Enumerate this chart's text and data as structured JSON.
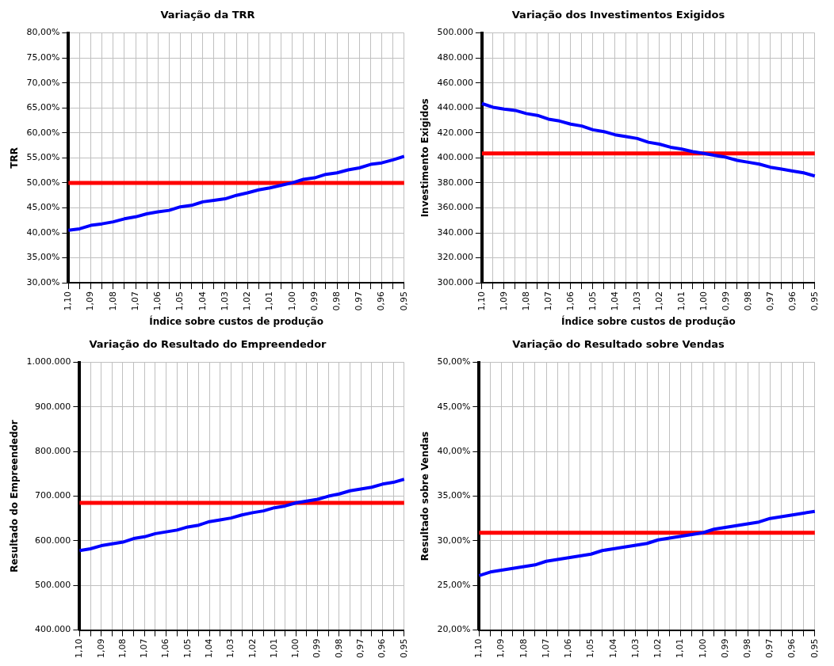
{
  "chart_data": [
    {
      "type": "line",
      "title": "Variação da TRR",
      "xlabel": "Índice sobre custos de produção",
      "ylabel": "TRR",
      "categories": [
        "1,10",
        null,
        "1,09",
        null,
        "1,08",
        null,
        "1,07",
        null,
        "1,06",
        null,
        "1,05",
        null,
        "1,04",
        null,
        "1,03",
        null,
        "1,02",
        null,
        "1,01",
        null,
        "1,00",
        null,
        "0,99",
        null,
        "0,98",
        null,
        "0,97",
        null,
        "0,96",
        null,
        "0,95"
      ],
      "series": [
        {
          "color": "#0000ff",
          "values": [
            40.5,
            40.8,
            41.5,
            41.8,
            42.2,
            42.8,
            43.2,
            43.8,
            44.2,
            44.5,
            45.2,
            45.5,
            46.2,
            46.5,
            46.8,
            47.5,
            48.0,
            48.6,
            49.0,
            49.5,
            50.0,
            50.7,
            51.0,
            51.7,
            52.0,
            52.6,
            53.0,
            53.7,
            54.0,
            54.6,
            55.3
          ]
        }
      ],
      "ylim": [
        30,
        80
      ],
      "yticks": [
        {
          "value": 30,
          "label": "30,00%"
        },
        {
          "value": 35,
          "label": "35,00%"
        },
        {
          "value": 40,
          "label": "40,00%"
        },
        {
          "value": 45,
          "label": "45,00%"
        },
        {
          "value": 50,
          "label": "50,00%"
        },
        {
          "value": 55,
          "label": "55,00%"
        },
        {
          "value": 60,
          "label": "60,00%"
        },
        {
          "value": 65,
          "label": "65,00%"
        },
        {
          "value": 70,
          "label": "70,00%"
        },
        {
          "value": 75,
          "label": "75,00%"
        },
        {
          "value": 80,
          "label": "80,00%"
        }
      ],
      "ref_lines": [
        {
          "axis": "y",
          "value": 50,
          "color": "#ff0000"
        }
      ],
      "grid": true,
      "legend": false,
      "marker": "none",
      "line_style": "solid"
    },
    {
      "type": "line",
      "title": "Variação dos Investimentos Exigidos",
      "xlabel": "Índice sobre custos de produção",
      "ylabel": "Investimento Exigidos",
      "categories": [
        "1,10",
        null,
        "1,09",
        null,
        "1,08",
        null,
        "1,07",
        null,
        "1,06",
        null,
        "1,05",
        null,
        "1,04",
        null,
        "1,03",
        null,
        "1,02",
        null,
        "1,01",
        null,
        "1,00",
        null,
        "0,99",
        null,
        "0,98",
        null,
        "0,97",
        null,
        "0,96",
        null,
        "0,95"
      ],
      "series": [
        {
          "color": "#0000ff",
          "values": [
            443500,
            440500,
            439000,
            438000,
            435500,
            434000,
            431000,
            429500,
            427000,
            425500,
            422500,
            421000,
            418500,
            417000,
            415500,
            412500,
            411000,
            408500,
            407000,
            405000,
            403500,
            402000,
            400500,
            398000,
            396500,
            395000,
            392500,
            391000,
            389500,
            388000,
            385500
          ]
        }
      ],
      "ylim": [
        300000,
        500000
      ],
      "yticks": [
        {
          "value": 300000,
          "label": "300.000"
        },
        {
          "value": 320000,
          "label": "320.000"
        },
        {
          "value": 340000,
          "label": "340.000"
        },
        {
          "value": 360000,
          "label": "360.000"
        },
        {
          "value": 380000,
          "label": "380.000"
        },
        {
          "value": 400000,
          "label": "400.000"
        },
        {
          "value": 420000,
          "label": "420.000"
        },
        {
          "value": 440000,
          "label": "440.000"
        },
        {
          "value": 460000,
          "label": "460.000"
        },
        {
          "value": 480000,
          "label": "480.000"
        },
        {
          "value": 500000,
          "label": "500.000"
        }
      ],
      "ref_lines": [
        {
          "axis": "y",
          "value": 403500,
          "color": "#ff0000"
        }
      ],
      "grid": true,
      "legend": false,
      "marker": "none",
      "line_style": "solid"
    },
    {
      "type": "line",
      "title": "Variação do Resultado do Empreendedor",
      "ylabel": "Resultado do Empreendedor",
      "categories": [
        "1,10",
        null,
        "1,09",
        null,
        "1,08",
        null,
        "1,07",
        null,
        "1,06",
        null,
        "1,05",
        null,
        "1,04",
        null,
        "1,03",
        null,
        "1,02",
        null,
        "1,01",
        null,
        "1,00",
        null,
        "0,99",
        null,
        "0,98",
        null,
        "0,97",
        null,
        "0,96",
        null,
        "0,95"
      ],
      "series": [
        {
          "color": "#0000ff",
          "values": [
            578000,
            582000,
            589000,
            593000,
            597000,
            605000,
            609000,
            616000,
            620000,
            624000,
            631000,
            635000,
            643000,
            647000,
            651000,
            658000,
            663000,
            667000,
            674000,
            678000,
            685000,
            689000,
            693000,
            700000,
            705000,
            712000,
            716000,
            720000,
            727000,
            731000,
            738000
          ]
        }
      ],
      "ylim": [
        400000,
        1000000
      ],
      "yticks": [
        {
          "value": 400000,
          "label": "400.000"
        },
        {
          "value": 500000,
          "label": "500.000"
        },
        {
          "value": 600000,
          "label": "600.000"
        },
        {
          "value": 700000,
          "label": "700.000"
        },
        {
          "value": 800000,
          "label": "800.000"
        },
        {
          "value": 900000,
          "label": "900.000"
        },
        {
          "value": 1000000,
          "label": "1.000.000"
        }
      ],
      "ref_lines": [
        {
          "axis": "y",
          "value": 685000,
          "color": "#ff0000"
        }
      ],
      "grid": true,
      "legend": false,
      "marker": "none",
      "line_style": "solid"
    },
    {
      "type": "line",
      "title": "Variação do Resultado sobre Vendas",
      "ylabel": "Resultado sobre Vendas",
      "categories": [
        "1,10",
        null,
        "1,09",
        null,
        "1,08",
        null,
        "1,07",
        null,
        "1,06",
        null,
        "1,05",
        null,
        "1,04",
        null,
        "1,03",
        null,
        "1,02",
        null,
        "1,01",
        null,
        "1,00",
        null,
        "0,99",
        null,
        "0,98",
        null,
        "0,97",
        null,
        "0,96",
        null,
        "0,95"
      ],
      "series": [
        {
          "color": "#0000ff",
          "values": [
            26.1,
            26.5,
            26.7,
            26.9,
            27.1,
            27.3,
            27.7,
            27.9,
            28.1,
            28.3,
            28.5,
            28.9,
            29.1,
            29.3,
            29.5,
            29.7,
            30.1,
            30.3,
            30.5,
            30.7,
            30.9,
            31.3,
            31.5,
            31.7,
            31.9,
            32.1,
            32.5,
            32.7,
            32.9,
            33.1,
            33.3
          ]
        }
      ],
      "ylim": [
        20,
        50
      ],
      "yticks": [
        {
          "value": 20,
          "label": "20,00%"
        },
        {
          "value": 25,
          "label": "25,00%"
        },
        {
          "value": 30,
          "label": "30,00%"
        },
        {
          "value": 35,
          "label": "35,00%"
        },
        {
          "value": 40,
          "label": "40,00%"
        },
        {
          "value": 45,
          "label": "45,00%"
        },
        {
          "value": 50,
          "label": "50,00%"
        }
      ],
      "ref_lines": [
        {
          "axis": "y",
          "value": 30.9,
          "color": "#ff0000"
        }
      ],
      "grid": true,
      "legend": false,
      "marker": "none",
      "line_style": "solid"
    }
  ]
}
